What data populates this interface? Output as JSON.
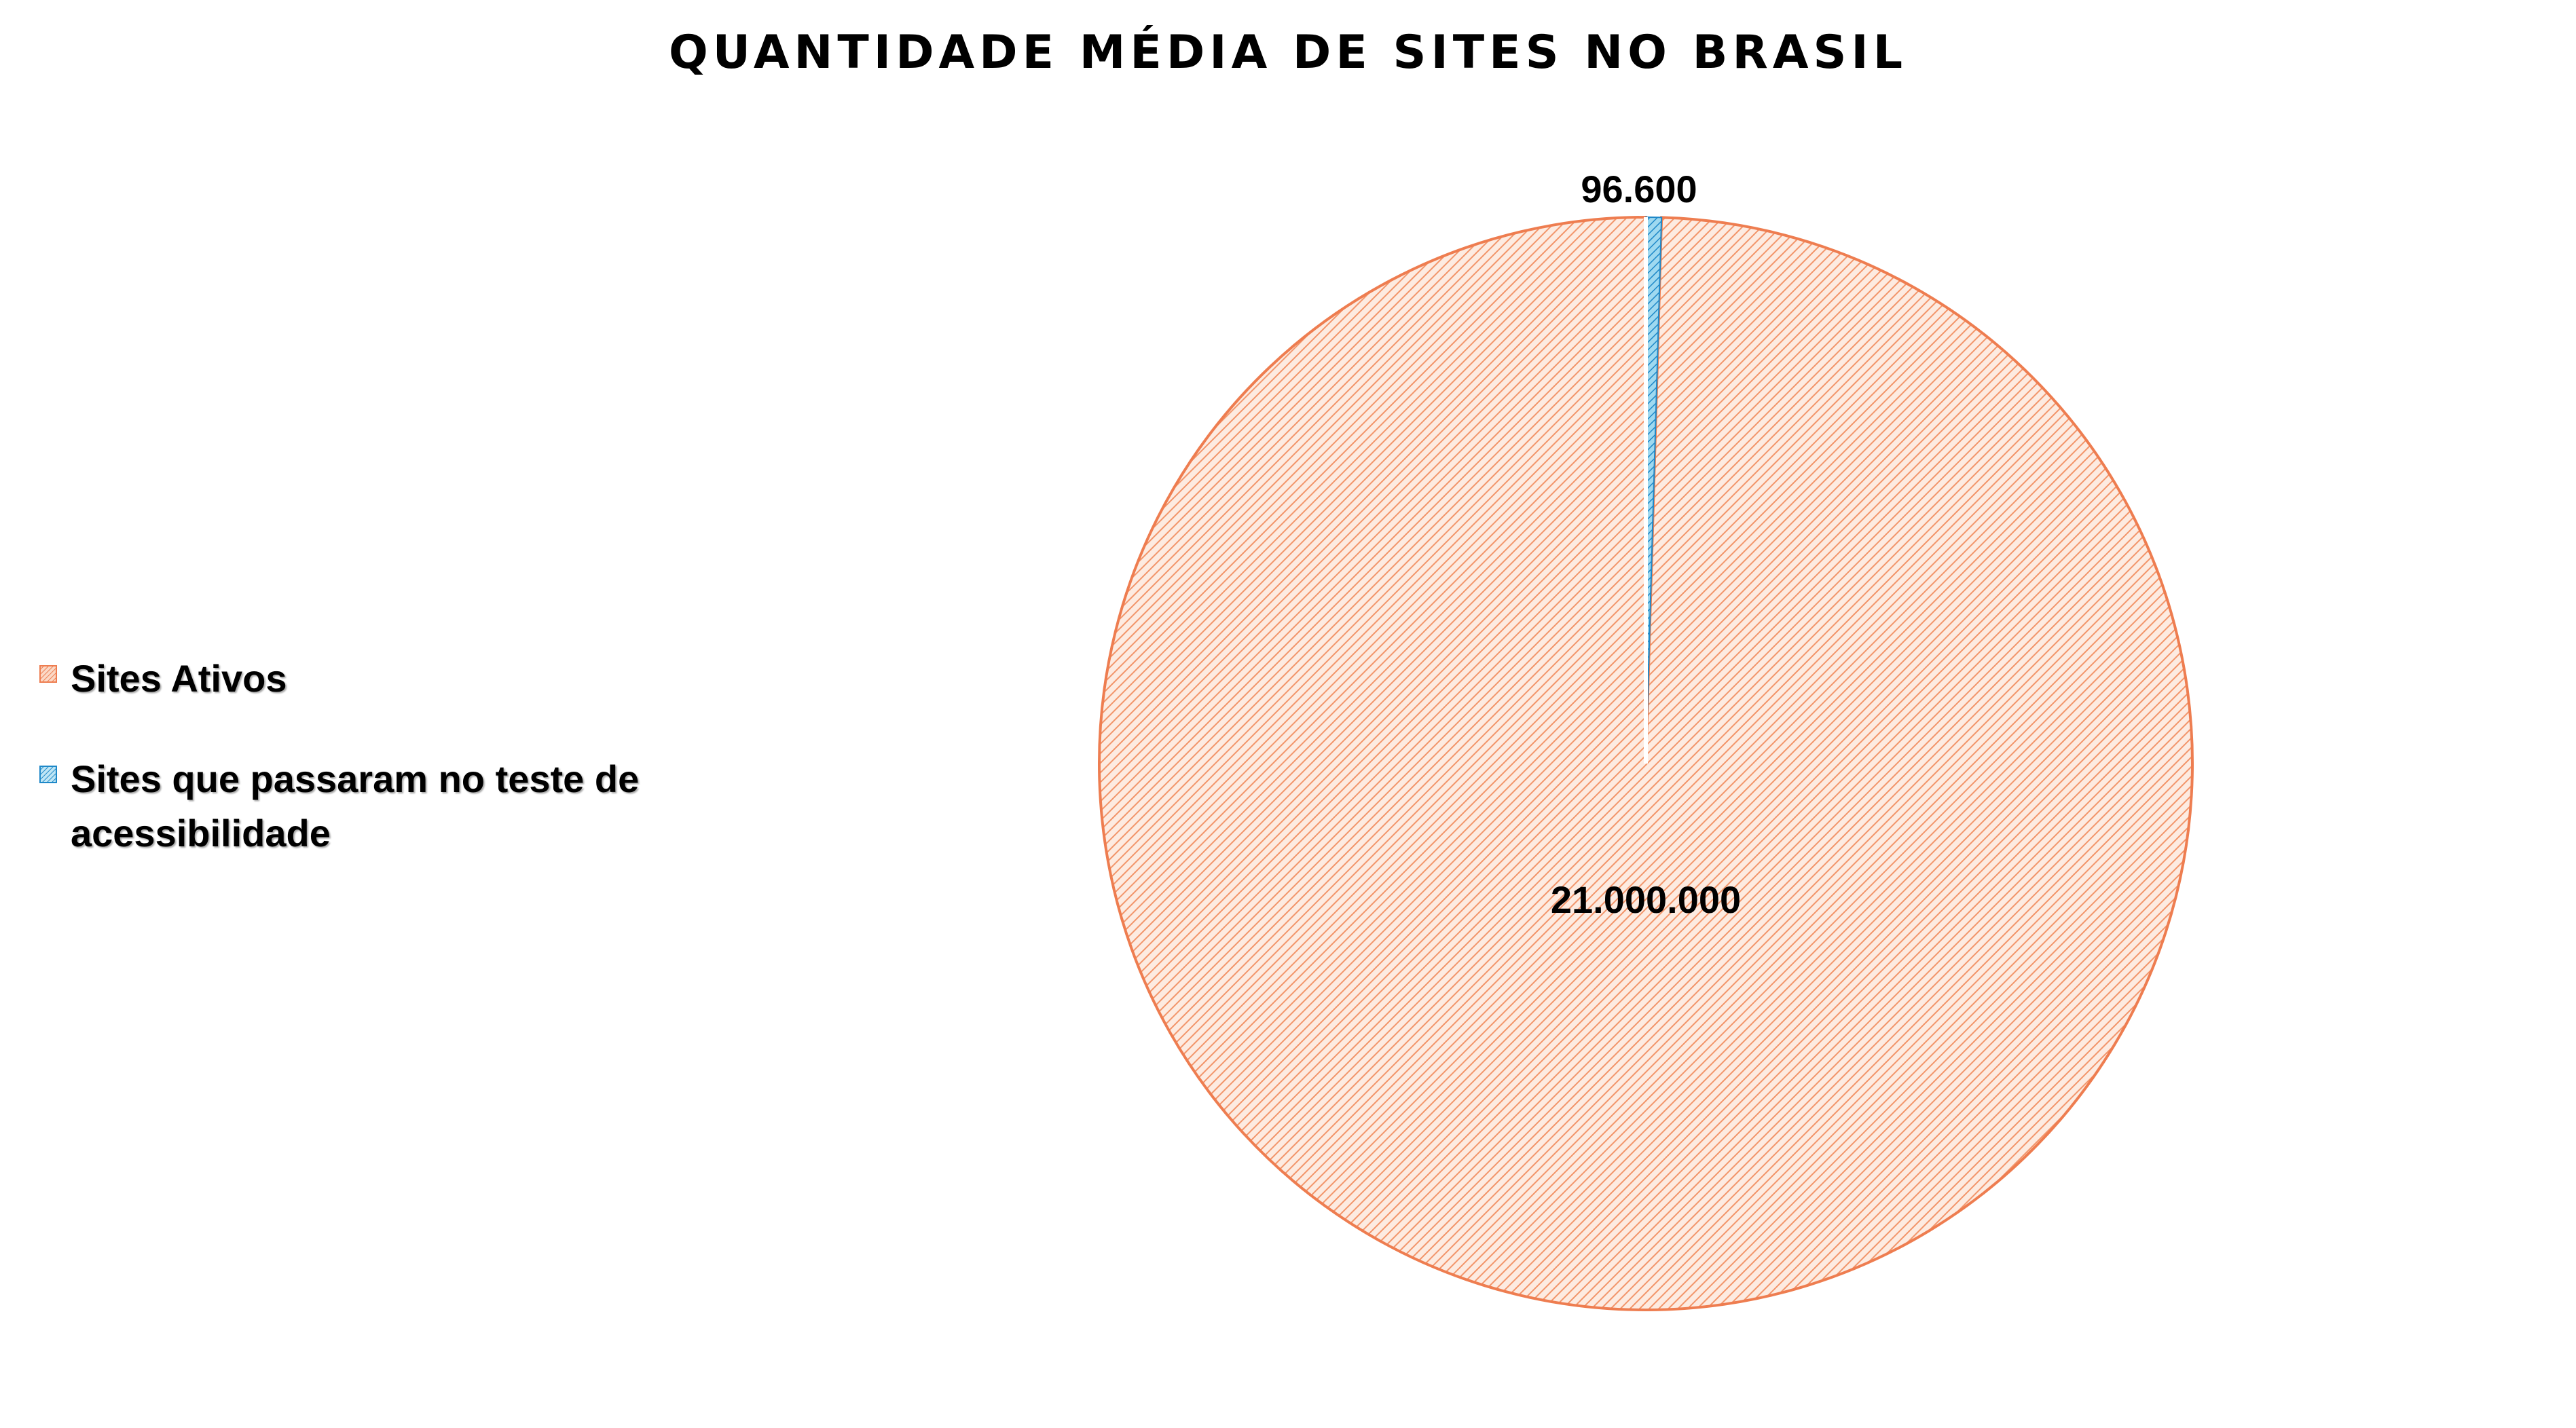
{
  "chart_data": {
    "type": "pie",
    "title": "QUANTIDADE MÉDIA DE SITES NO BRASIL",
    "legend_position": "left",
    "slices": [
      {
        "name": "Sites Ativos",
        "value": 21000000,
        "label": "21.000.000",
        "color": "#F4A582",
        "stroke": "#EE7D50",
        "icon": "hatched-orange-square"
      },
      {
        "name": "Sites que passaram no teste de acessibilidade",
        "value": 96600,
        "label": "96.600",
        "color": "#3BB6E6",
        "stroke": "#1E88C8",
        "icon": "hatched-blue-square"
      }
    ]
  }
}
